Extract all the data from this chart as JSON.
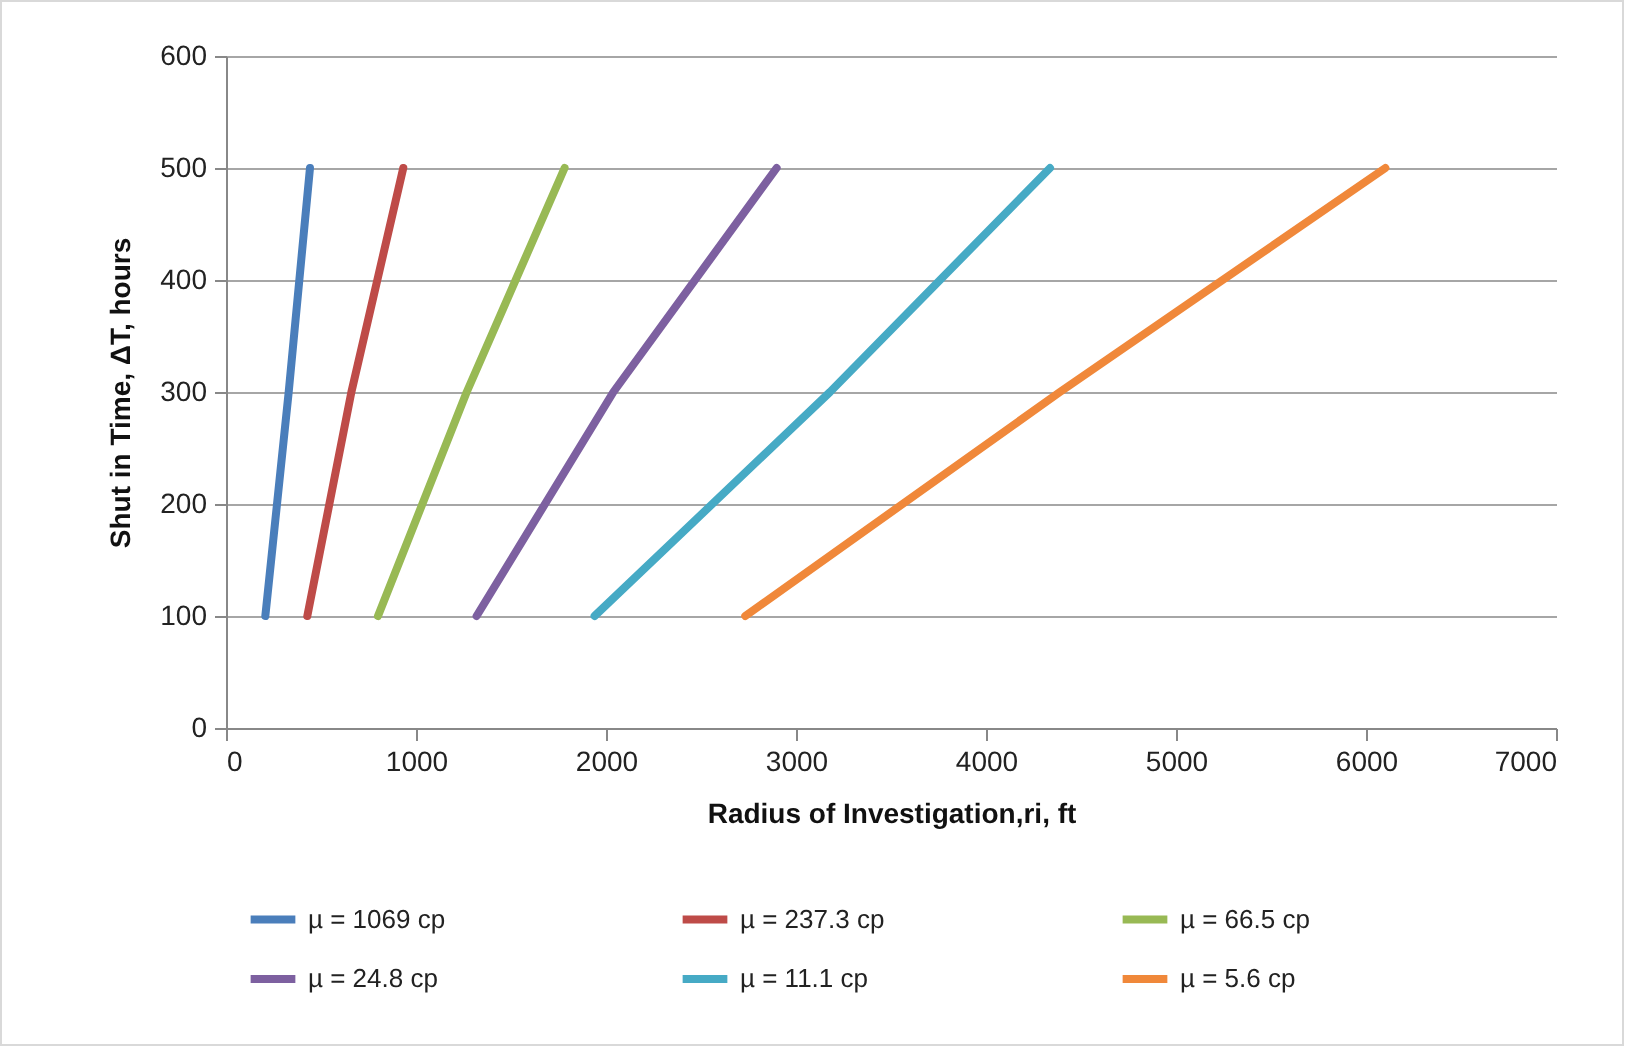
{
  "chart_data": {
    "type": "line",
    "xlabel": "Radius of Investigation,ri, ft",
    "ylabel": "Shut in Time, ΔT, hours",
    "xlim": [
      0,
      7000
    ],
    "xticks": [
      0,
      1000,
      2000,
      3000,
      4000,
      5000,
      6000,
      7000
    ],
    "ylim": [
      0,
      600
    ],
    "yticks": [
      0,
      100,
      200,
      300,
      400,
      500,
      600
    ],
    "grid": "y",
    "legend": "bottom",
    "marker": "none",
    "line_style": "solid",
    "series": [
      {
        "name": "µ = 1069 cp",
        "color": "#4a7ebb",
        "x": [
          207,
          330,
          442
        ],
        "values": [
          100,
          300,
          500
        ]
      },
      {
        "name": "µ = 237.3 cp",
        "color": "#be4b48",
        "x": [
          428,
          660,
          933
        ],
        "values": [
          100,
          300,
          500
        ]
      },
      {
        "name": "µ = 66.5 cp",
        "color": "#98b954",
        "x": [
          800,
          1267,
          1782
        ],
        "values": [
          100,
          300,
          500
        ]
      },
      {
        "name": "µ = 24.8 cp",
        "color": "#7d60a0",
        "x": [
          1319,
          2039,
          2898
        ],
        "values": [
          100,
          300,
          500
        ]
      },
      {
        "name": "µ = 11.1 cp",
        "color": "#46aac5",
        "x": [
          1940,
          3179,
          4337
        ],
        "values": [
          100,
          300,
          500
        ]
      },
      {
        "name": "µ = 5.6 cp",
        "color": "#f0883a",
        "x": [
          2733,
          4389,
          6102
        ],
        "values": [
          100,
          300,
          500
        ]
      }
    ]
  }
}
